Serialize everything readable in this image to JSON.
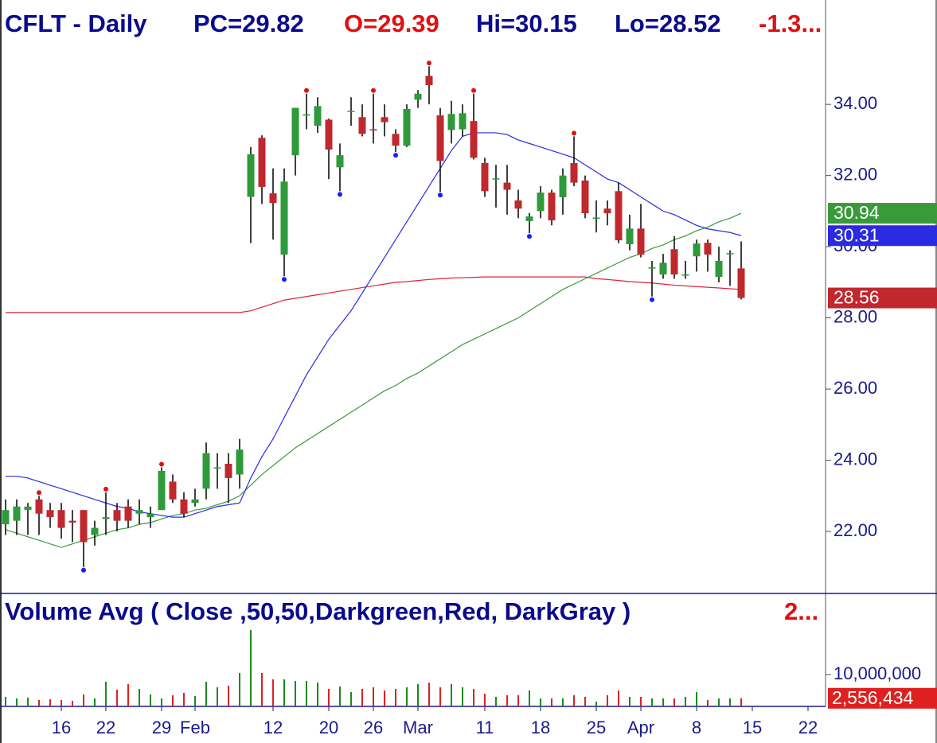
{
  "chart_data": [
    {
      "type": "candlestick",
      "title": "CFLT - Daily",
      "quote": [
        {
          "text": "PC=29.82",
          "color": "#0a0a8c"
        },
        {
          "text": "O=29.39",
          "color": "#e01010"
        },
        {
          "text": "Hi=30.15",
          "color": "#0a0a8c"
        },
        {
          "text": "Lo=28.52",
          "color": "#0a0a8c"
        },
        {
          "text": "-1.3...",
          "color": "#e01010"
        }
      ],
      "categories": [
        null,
        null,
        null,
        null,
        null,
        "16",
        null,
        null,
        null,
        "22",
        null,
        null,
        null,
        null,
        "29",
        null,
        null,
        "Feb",
        null,
        null,
        null,
        null,
        null,
        null,
        "12",
        null,
        null,
        null,
        null,
        "20",
        null,
        null,
        null,
        "26",
        null,
        null,
        null,
        "Mar",
        null,
        null,
        null,
        null,
        null,
        "11",
        null,
        null,
        null,
        null,
        "18",
        null,
        null,
        null,
        null,
        "25",
        null,
        null,
        null,
        "Apr",
        null,
        null,
        null,
        null,
        "8",
        null,
        null,
        null,
        null,
        "15",
        null,
        null,
        null,
        null,
        "22"
      ],
      "open": [
        22.2,
        22.3,
        22.6,
        22.9,
        22.6,
        22.6,
        22.3,
        22.6,
        21.9,
        22.35,
        22.6,
        22.7,
        22.5,
        22.4,
        22.6,
        23.4,
        22.9,
        22.8,
        23.2,
        23.8,
        23.9,
        23.6,
        31.4,
        33.06,
        31.5,
        29.78,
        32.57,
        33.7,
        33.4,
        33.57,
        32.23,
        33.8,
        33.64,
        33.3,
        33.64,
        33.17,
        32.84,
        34.13,
        34.8,
        33.69,
        33.28,
        33.3,
        33.53,
        32.35,
        31.9,
        31.8,
        31.3,
        30.72,
        31.0,
        31.52,
        31.39,
        32.35,
        31.86,
        30.8,
        31.07,
        31.56,
        30.07,
        30.51,
        29.4,
        29.22,
        29.93,
        29.2,
        29.73,
        30.11,
        29.15,
        29.8,
        29.39,
        null,
        null,
        null,
        null,
        null,
        null
      ],
      "high": [
        22.9,
        22.9,
        22.8,
        23.0,
        22.8,
        22.8,
        22.6,
        22.6,
        22.3,
        23.1,
        22.8,
        22.9,
        22.9,
        22.7,
        23.8,
        23.6,
        23.1,
        23.2,
        24.5,
        24.2,
        24.2,
        24.6,
        32.8,
        33.13,
        32.2,
        32.2,
        33.9,
        34.3,
        34.2,
        33.6,
        32.9,
        34.2,
        34.0,
        34.3,
        34.0,
        33.3,
        34.0,
        34.4,
        35.07,
        33.9,
        34.1,
        34.0,
        34.3,
        32.5,
        32.3,
        32.3,
        31.6,
        30.95,
        31.7,
        31.6,
        32.2,
        33.1,
        32.0,
        31.3,
        31.3,
        31.8,
        30.9,
        31.2,
        29.6,
        29.8,
        30.3,
        29.6,
        30.2,
        30.2,
        30.0,
        29.9,
        30.15,
        null,
        null,
        null,
        null,
        null,
        null
      ],
      "low": [
        21.9,
        21.9,
        21.9,
        21.9,
        22.1,
        21.8,
        21.7,
        21.0,
        21.6,
        21.9,
        22.0,
        22.1,
        22.2,
        22.1,
        22.6,
        22.8,
        22.4,
        22.7,
        22.9,
        23.2,
        22.8,
        23.2,
        30.1,
        31.2,
        30.2,
        29.17,
        32.0,
        33.3,
        33.2,
        31.9,
        31.56,
        33.4,
        33.1,
        32.9,
        33.1,
        32.66,
        32.8,
        33.9,
        34.0,
        31.54,
        32.9,
        33.1,
        32.45,
        31.4,
        31.1,
        30.9,
        30.8,
        30.38,
        30.8,
        30.6,
        30.9,
        31.7,
        30.8,
        30.4,
        30.6,
        30.1,
        29.9,
        29.7,
        28.6,
        29.1,
        29.1,
        29.1,
        29.3,
        29.3,
        29.0,
        28.9,
        28.52,
        null,
        null,
        null,
        null,
        null,
        null
      ],
      "close": [
        22.6,
        22.7,
        22.7,
        22.5,
        22.4,
        22.1,
        22.25,
        21.7,
        22.1,
        22.4,
        22.3,
        22.3,
        22.6,
        22.5,
        23.7,
        22.9,
        22.5,
        22.9,
        24.2,
        23.8,
        23.5,
        24.3,
        32.6,
        31.68,
        31.23,
        31.83,
        33.9,
        33.72,
        33.95,
        32.73,
        32.57,
        33.82,
        33.17,
        33.28,
        33.5,
        32.84,
        33.87,
        34.3,
        34.54,
        32.41,
        33.73,
        33.75,
        32.5,
        31.56,
        31.92,
        31.6,
        31.07,
        30.85,
        31.52,
        30.74,
        32.0,
        31.8,
        30.94,
        30.82,
        30.94,
        30.18,
        30.51,
        29.78,
        29.42,
        29.55,
        29.22,
        29.22,
        30.09,
        29.78,
        29.6,
        29.82,
        28.56,
        null,
        null,
        null,
        null,
        null,
        null
      ],
      "last_label": "28.56",
      "up_color": "#2e9a3a",
      "down_color": "#c0282d",
      "overlays": [
        {
          "color": "#e0203a",
          "values": [
            28.15,
            28.15,
            28.15,
            28.15,
            28.15,
            28.15,
            28.15,
            28.15,
            28.15,
            28.15,
            28.15,
            28.15,
            28.15,
            28.15,
            28.15,
            28.15,
            28.15,
            28.15,
            28.15,
            28.15,
            28.15,
            28.15,
            28.2,
            28.3,
            28.4,
            28.5,
            28.55,
            28.6,
            28.65,
            28.7,
            28.75,
            28.8,
            28.85,
            28.9,
            28.95,
            29.0,
            29.02,
            29.05,
            29.08,
            29.1,
            29.12,
            29.13,
            29.14,
            29.15,
            29.15,
            29.15,
            29.15,
            29.15,
            29.15,
            29.15,
            29.15,
            29.15,
            29.15,
            29.1,
            29.08,
            29.05,
            29.02,
            29.0,
            28.98,
            28.95,
            28.92,
            28.9,
            28.88,
            28.86,
            28.84,
            28.82,
            28.8,
            null,
            null,
            null,
            null,
            null,
            null
          ]
        },
        {
          "color": "#3a9a3a",
          "last_label": "30.94",
          "values": [
            22.05,
            21.95,
            21.85,
            21.75,
            21.65,
            21.55,
            21.65,
            21.75,
            21.85,
            21.95,
            22.05,
            22.1,
            22.2,
            22.25,
            22.35,
            22.45,
            22.5,
            22.6,
            22.65,
            22.75,
            22.85,
            23.0,
            23.3,
            23.6,
            23.85,
            24.1,
            24.35,
            24.55,
            24.75,
            24.95,
            25.15,
            25.35,
            25.55,
            25.75,
            25.95,
            26.1,
            26.3,
            26.45,
            26.65,
            26.85,
            27.05,
            27.25,
            27.4,
            27.55,
            27.7,
            27.85,
            28.0,
            28.2,
            28.4,
            28.6,
            28.8,
            28.95,
            29.1,
            29.25,
            29.4,
            29.55,
            29.7,
            29.8,
            29.95,
            30.05,
            30.2,
            30.3,
            30.45,
            30.55,
            30.7,
            30.8,
            30.94,
            null,
            null,
            null,
            null,
            null,
            null
          ]
        },
        {
          "color": "#2a2ae0",
          "last_label": "30.31",
          "values": [
            23.55,
            23.55,
            23.5,
            23.4,
            23.3,
            23.2,
            23.1,
            23.0,
            22.9,
            22.8,
            22.7,
            22.65,
            22.55,
            22.5,
            22.45,
            22.4,
            22.4,
            22.5,
            22.6,
            22.7,
            22.75,
            22.8,
            23.5,
            24.1,
            24.6,
            25.2,
            25.8,
            26.4,
            26.9,
            27.4,
            27.8,
            28.2,
            28.7,
            29.2,
            29.7,
            30.2,
            30.7,
            31.2,
            31.7,
            32.2,
            32.7,
            33.1,
            33.2,
            33.2,
            33.2,
            33.15,
            33.0,
            32.9,
            32.8,
            32.7,
            32.6,
            32.5,
            32.3,
            32.1,
            31.9,
            31.8,
            31.6,
            31.4,
            31.2,
            31.0,
            30.9,
            30.75,
            30.6,
            30.5,
            30.45,
            30.4,
            30.31,
            null,
            null,
            null,
            null,
            null,
            null
          ]
        }
      ],
      "ylim": [
        20.28,
        36.82
      ],
      "yticks": [
        {
          "value": 22,
          "label": "22.00"
        },
        {
          "value": 24,
          "label": "24.00"
        },
        {
          "value": 26,
          "label": "26.00"
        },
        {
          "value": 28,
          "label": "28.00"
        },
        {
          "value": 30,
          "label": "30.00"
        },
        {
          "value": 32,
          "label": "32.00"
        },
        {
          "value": 34,
          "label": "34.00"
        }
      ]
    },
    {
      "type": "bar",
      "title": "Volume Avg ( Close ,50,50,Darkgreen,Red, DarkGray )",
      "title_value": "2...",
      "values": [
        3000000,
        2500000,
        2750000,
        2000000,
        2250000,
        2000000,
        1750000,
        3750000,
        2500000,
        7750000,
        5250000,
        7000000,
        5500000,
        3750000,
        2500000,
        3500000,
        4250000,
        3250000,
        7750000,
        6000000,
        6500000,
        10500000,
        24000000,
        10500000,
        8500000,
        8500000,
        8000000,
        8000000,
        7500000,
        5500000,
        6250000,
        4500000,
        5500000,
        6000000,
        5000000,
        5500000,
        6000000,
        7000000,
        7500000,
        6000000,
        7000000,
        6000000,
        5500000,
        4000000,
        3000000,
        3500000,
        3500000,
        5000000,
        2500000,
        2500000,
        2500000,
        3500000,
        3000000,
        1500000,
        3500000,
        5000000,
        3000000,
        3000000,
        2500000,
        2500000,
        2500000,
        3000000,
        4500000,
        2000000,
        2500000,
        2500000,
        2556434,
        null,
        null,
        null,
        null,
        null,
        null
      ],
      "last_label": "2,556,434",
      "up_color": "#1a8a1a",
      "down_color": "#e02020",
      "ylim": [
        0,
        35000000
      ],
      "yticks": [
        {
          "value": 10000000,
          "label": "10,000,000"
        }
      ]
    }
  ]
}
